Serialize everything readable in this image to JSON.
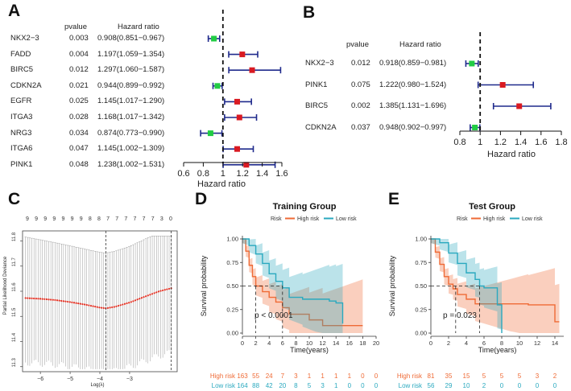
{
  "panels": {
    "a": {
      "letter": "A",
      "pvalue_header": "pvalue",
      "hr_header": "Hazard ratio",
      "xlabel": "Hazard ratio"
    },
    "b": {
      "letter": "B",
      "pvalue_header": "pvalue",
      "hr_header": "Hazard ratio",
      "xlabel": "Hazard ratio"
    },
    "c": {
      "letter": "C",
      "ylabel": "Partial Likelihood Deviance",
      "xlabel": "Log(λ)"
    },
    "d": {
      "letter": "D"
    },
    "e": {
      "letter": "E"
    }
  },
  "colors": {
    "risk_up": "#d91a22",
    "risk_down": "#22cc44",
    "ci": "#1f2a8c",
    "high": "#ef6a35",
    "low": "#2aa9bf",
    "lasso": "#e32d1f"
  },
  "chart_data": [
    {
      "id": "A",
      "type": "forest",
      "xlabel": "Hazard ratio",
      "xlim": [
        0.6,
        1.6
      ],
      "ticks": [
        0.6,
        0.8,
        1.0,
        1.2,
        1.4,
        1.6
      ],
      "tick_labels": [
        "0.6",
        "0.8",
        "1",
        "1.2",
        "1.4",
        "1.6"
      ],
      "ref_line": 1.0,
      "rows": [
        {
          "gene": "NKX2−3",
          "p": "0.003",
          "hr": 0.908,
          "lo": 0.851,
          "hi": 0.967,
          "text": "0.908(0.851−0.967)"
        },
        {
          "gene": "FADD",
          "p": "0.004",
          "hr": 1.197,
          "lo": 1.059,
          "hi": 1.354,
          "text": "1.197(1.059−1.354)"
        },
        {
          "gene": "BIRC5",
          "p": "0.012",
          "hr": 1.297,
          "lo": 1.06,
          "hi": 1.587,
          "text": "1.297(1.060−1.587)"
        },
        {
          "gene": "CDKN2A",
          "p": "0.021",
          "hr": 0.944,
          "lo": 0.899,
          "hi": 0.992,
          "text": "0.944(0.899−0.992)"
        },
        {
          "gene": "EGFR",
          "p": "0.025",
          "hr": 1.145,
          "lo": 1.017,
          "hi": 1.29,
          "text": "1.145(1.017−1.290)"
        },
        {
          "gene": "ITGA3",
          "p": "0.028",
          "hr": 1.168,
          "lo": 1.017,
          "hi": 1.342,
          "text": "1.168(1.017−1.342)"
        },
        {
          "gene": "NRG3",
          "p": "0.034",
          "hr": 0.874,
          "lo": 0.773,
          "hi": 0.99,
          "text": "0.874(0.773−0.990)"
        },
        {
          "gene": "ITGA6",
          "p": "0.047",
          "hr": 1.145,
          "lo": 1.002,
          "hi": 1.309,
          "text": "1.145(1.002−1.309)"
        },
        {
          "gene": "PINK1",
          "p": "0.048",
          "hr": 1.238,
          "lo": 1.002,
          "hi": 1.531,
          "text": "1.238(1.002−1.531)"
        }
      ]
    },
    {
      "id": "B",
      "type": "forest",
      "xlabel": "Hazard ratio",
      "xlim": [
        0.8,
        1.8
      ],
      "ticks": [
        0.8,
        1.0,
        1.2,
        1.4,
        1.6,
        1.8
      ],
      "tick_labels": [
        "0.8",
        "1",
        "1.2",
        "1.4",
        "1.6",
        "1.8"
      ],
      "ref_line": 1.0,
      "rows": [
        {
          "gene": "NKX2−3",
          "p": "0.012",
          "hr": 0.918,
          "lo": 0.859,
          "hi": 0.981,
          "text": "0.918(0.859−0.981)"
        },
        {
          "gene": "PINK1",
          "p": "0.075",
          "hr": 1.222,
          "lo": 0.98,
          "hi": 1.524,
          "text": "1.222(0.980−1.524)"
        },
        {
          "gene": "BIRC5",
          "p": "0.002",
          "hr": 1.385,
          "lo": 1.131,
          "hi": 1.696,
          "text": "1.385(1.131−1.696)"
        },
        {
          "gene": "CDKN2A",
          "p": "0.037",
          "hr": 0.948,
          "lo": 0.902,
          "hi": 0.997,
          "text": "0.948(0.902−0.997)"
        }
      ]
    },
    {
      "id": "C",
      "type": "lasso_cv",
      "xlabel": "Log(λ)",
      "ylabel": "Partial Likelihood Deviance",
      "xlim": [
        -6.6,
        -1.4
      ],
      "ylim": [
        11.28,
        11.84
      ],
      "xticks": [
        -6,
        -5,
        -4,
        -3
      ],
      "xtick_labels": [
        "−6",
        "−5",
        "−4",
        "−3"
      ],
      "yticks": [
        11.3,
        11.4,
        11.5,
        11.6,
        11.7,
        11.8
      ],
      "top_labels": [
        "9",
        "9",
        "9",
        "9",
        "9",
        "9",
        "9",
        "8",
        "8",
        "7",
        "7",
        "7",
        "7",
        "7",
        "7",
        "3",
        "0"
      ],
      "lambda_min": -3.8,
      "lambda_1se": -1.6,
      "curve_x": [
        -6.5,
        -6.0,
        -5.5,
        -5.0,
        -4.5,
        -4.0,
        -3.8,
        -3.5,
        -3.0,
        -2.5,
        -2.0,
        -1.6
      ],
      "curve_y": [
        11.573,
        11.57,
        11.565,
        11.557,
        11.547,
        11.535,
        11.532,
        11.538,
        11.555,
        11.578,
        11.6,
        11.612
      ],
      "err_lower": -0.27,
      "err_upper": 0.22
    },
    {
      "id": "D",
      "type": "km",
      "title": "Training  Group",
      "ylabel": "Survival probability",
      "xlabel": "Time(years)",
      "legend_title": "Risk",
      "legend": [
        "High risk",
        "Low risk"
      ],
      "xlim": [
        0,
        20
      ],
      "xticks": [
        0,
        2,
        4,
        6,
        8,
        10,
        12,
        14,
        16,
        18,
        20
      ],
      "yticks": [
        0,
        0.25,
        0.5,
        0.75,
        1.0
      ],
      "ytick_labels": [
        "0.00",
        "0.25",
        "0.50",
        "0.75",
        "1.00"
      ],
      "pvalue": "p < 0.0001",
      "median_high": 2.0,
      "median_low": 6.0,
      "high": {
        "t": [
          0,
          0.5,
          1,
          1.5,
          2,
          3,
          4,
          5,
          6,
          7,
          8,
          9,
          10,
          11,
          12,
          13,
          14,
          15,
          16,
          17,
          18
        ],
        "s": [
          1,
          0.87,
          0.72,
          0.6,
          0.5,
          0.44,
          0.38,
          0.33,
          0.27,
          0.2,
          0.2,
          0.2,
          0.14,
          0.14,
          0.08,
          0.08,
          0.08,
          0.08,
          0.08,
          0.08,
          0.08
        ]
      },
      "low": {
        "t": [
          0,
          1,
          2,
          3,
          4,
          5,
          6,
          7,
          8,
          9,
          10,
          11,
          12,
          13,
          14,
          15
        ],
        "s": [
          1,
          0.93,
          0.84,
          0.74,
          0.63,
          0.55,
          0.48,
          0.38,
          0.38,
          0.36,
          0.36,
          0.36,
          0.36,
          0.34,
          0.32,
          0.1
        ]
      },
      "risk_table": {
        "High risk": [
          163,
          55,
          24,
          7,
          3,
          1,
          1,
          1,
          1,
          0,
          0
        ],
        "Low risk": [
          164,
          88,
          42,
          20,
          8,
          5,
          3,
          1,
          0,
          0,
          0
        ]
      }
    },
    {
      "id": "E",
      "type": "km",
      "title": "Test  Group",
      "ylabel": "Survival probability",
      "xlabel": "Time(years)",
      "legend_title": "Risk",
      "legend": [
        "High risk",
        "Low risk"
      ],
      "xlim": [
        0,
        15
      ],
      "xticks": [
        0,
        2,
        4,
        6,
        8,
        10,
        12,
        14
      ],
      "yticks": [
        0,
        0.25,
        0.5,
        0.75,
        1.0
      ],
      "ytick_labels": [
        "0.00",
        "0.25",
        "0.50",
        "0.75",
        "1.00"
      ],
      "pvalue": "p = 0.023",
      "median_high": 2.8,
      "median_low": 5.5,
      "high": {
        "t": [
          0,
          0.5,
          1,
          1.5,
          2,
          2.5,
          3,
          4,
          5,
          6,
          7,
          8,
          9,
          10,
          11,
          12,
          13,
          14,
          14.5
        ],
        "s": [
          1,
          0.86,
          0.73,
          0.6,
          0.52,
          0.47,
          0.41,
          0.36,
          0.31,
          0.31,
          0.31,
          0.31,
          0.31,
          0.31,
          0.3,
          0.3,
          0.3,
          0.12,
          0.12
        ]
      },
      "low": {
        "t": [
          0,
          1,
          2,
          3,
          4,
          5,
          5.5,
          6,
          7,
          7.5,
          8
        ],
        "s": [
          1,
          0.96,
          0.85,
          0.74,
          0.64,
          0.57,
          0.5,
          0.48,
          0.48,
          0.3,
          0
        ]
      },
      "risk_table": {
        "High risk": [
          81,
          35,
          15,
          5,
          5,
          5,
          3,
          2
        ],
        "Low risk": [
          56,
          29,
          10,
          2,
          0,
          0,
          0,
          0
        ]
      }
    }
  ]
}
